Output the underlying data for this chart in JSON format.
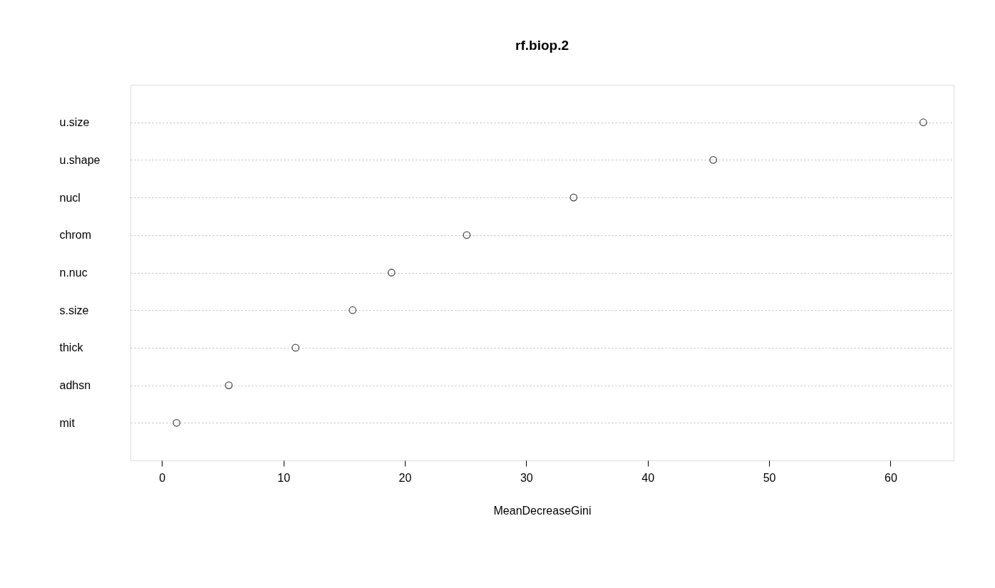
{
  "chart_data": {
    "type": "scatter",
    "title": "rf.biop.2",
    "xlabel": "MeanDecreaseGini",
    "orientation": "horizontal",
    "categories": [
      "u.size",
      "u.shape",
      "nucl",
      "chrom",
      "n.nuc",
      "s.size",
      "thick",
      "adhsn",
      "mit"
    ],
    "values": [
      62.7,
      45.4,
      33.9,
      25.1,
      18.9,
      15.7,
      11.0,
      5.5,
      1.2
    ],
    "color": "#000000",
    "xlim": [
      -2.6,
      65.2
    ],
    "xticks": [
      0,
      10,
      20,
      30,
      40,
      50,
      60
    ],
    "grid": "y",
    "marker": "circle"
  }
}
